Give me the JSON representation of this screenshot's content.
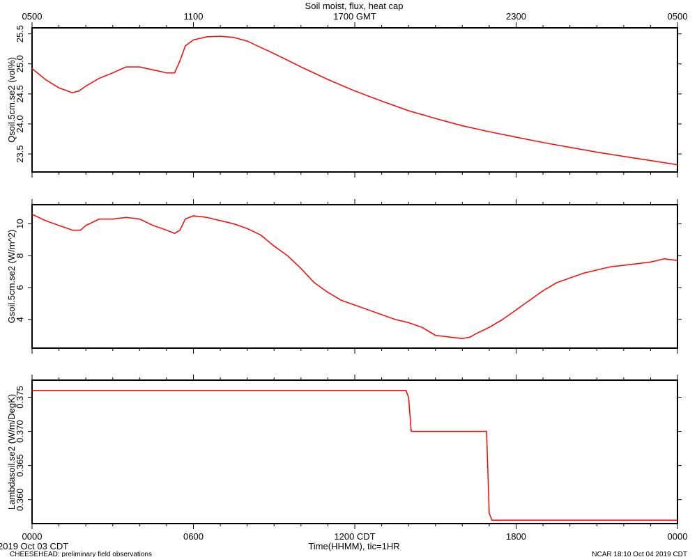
{
  "figure": {
    "title": "Soil moist, flux, heat cap",
    "xlabel": "Time(HHMM), tic=1HR",
    "footer_date": "2019 Oct 03 CDT",
    "footer_note": "CHEESEHEAD: preliminary field observations",
    "footer_right": "NCAR 18:10 Oct 04 2019 CDT",
    "line_color": "#ff0000",
    "top_ticks": [
      {
        "h": 0,
        "label": "0500"
      },
      {
        "h": 6,
        "label": "1100"
      },
      {
        "h": 12,
        "label": "1700 GMT"
      },
      {
        "h": 18,
        "label": "2300"
      },
      {
        "h": 24,
        "label": "0500"
      }
    ],
    "bottom_ticks": [
      {
        "h": 0,
        "label": "0000"
      },
      {
        "h": 6,
        "label": "0600"
      },
      {
        "h": 12,
        "label": "1200 CDT"
      },
      {
        "h": 18,
        "label": "1800"
      },
      {
        "h": 24,
        "label": "0000"
      }
    ]
  },
  "chart_data": [
    {
      "type": "line",
      "ylabel": "Qsoil.5cm.se2 (vol%)",
      "xlim": [
        0,
        24
      ],
      "ylim": [
        23.2,
        25.6
      ],
      "yticks": [
        23.5,
        24.0,
        24.5,
        25.0,
        25.5
      ],
      "ytick_labels": [
        "23.5",
        "24.0",
        "24.5",
        "25.0",
        "25.5"
      ],
      "x": [
        0,
        0.5,
        1,
        1.5,
        1.75,
        2,
        2.5,
        3,
        3.5,
        4,
        4.5,
        5,
        5.3,
        5.5,
        5.7,
        6,
        6.5,
        7,
        7.5,
        8,
        9,
        10,
        11,
        12,
        13,
        14,
        15,
        16,
        17,
        18,
        19,
        20,
        21,
        22,
        23,
        24
      ],
      "y": [
        24.92,
        24.74,
        24.6,
        24.52,
        24.55,
        24.63,
        24.76,
        24.85,
        24.95,
        24.95,
        24.9,
        24.85,
        24.85,
        25.05,
        25.3,
        25.4,
        25.45,
        25.46,
        25.44,
        25.38,
        25.17,
        24.95,
        24.74,
        24.55,
        24.38,
        24.22,
        24.09,
        23.97,
        23.87,
        23.78,
        23.69,
        23.61,
        23.53,
        23.46,
        23.39,
        23.32
      ]
    },
    {
      "type": "line",
      "ylabel": "Gsoil.5cm.se2 (W/m^2)",
      "xlim": [
        0,
        24
      ],
      "ylim": [
        2.2,
        11.2
      ],
      "yticks": [
        4,
        6,
        8,
        10
      ],
      "ytick_labels": [
        "4",
        "6",
        "8",
        "10"
      ],
      "x": [
        0,
        0.5,
        1,
        1.5,
        1.8,
        2,
        2.5,
        3,
        3.5,
        4,
        4.5,
        5,
        5.3,
        5.5,
        5.7,
        6,
        6.5,
        7,
        7.5,
        8,
        8.5,
        9,
        9.5,
        10,
        10.5,
        11,
        11.5,
        12,
        12.5,
        13,
        13.5,
        14,
        14.5,
        15,
        15.5,
        16,
        16.3,
        16.5,
        17,
        17.5,
        18,
        18.5,
        19,
        19.5,
        20,
        20.5,
        21,
        21.5,
        22,
        22.5,
        23,
        23.5,
        24
      ],
      "y": [
        10.6,
        10.2,
        9.9,
        9.6,
        9.6,
        9.9,
        10.3,
        10.3,
        10.4,
        10.3,
        9.9,
        9.6,
        9.4,
        9.6,
        10.3,
        10.5,
        10.4,
        10.2,
        10,
        9.7,
        9.3,
        8.6,
        8,
        7.2,
        6.3,
        5.7,
        5.2,
        4.9,
        4.6,
        4.3,
        4,
        3.8,
        3.5,
        3.0,
        2.9,
        2.8,
        2.9,
        3.1,
        3.5,
        4,
        4.6,
        5.2,
        5.8,
        6.3,
        6.6,
        6.9,
        7.1,
        7.3,
        7.4,
        7.5,
        7.6,
        7.8,
        7.7
      ]
    },
    {
      "type": "line",
      "ylabel": "Lambdasoil.se2 (W/m/DegK)",
      "xlim": [
        0,
        24
      ],
      "ylim": [
        0.3565,
        0.3775
      ],
      "yticks": [
        0.36,
        0.365,
        0.37,
        0.375
      ],
      "ytick_labels": [
        "0.360",
        "0.365",
        "0.370",
        "0.375"
      ],
      "x": [
        0,
        13.9,
        14.0,
        14.1,
        16.9,
        17.0,
        17.1,
        24
      ],
      "y": [
        0.376,
        0.376,
        0.375,
        0.37,
        0.37,
        0.358,
        0.357,
        0.357
      ]
    }
  ]
}
